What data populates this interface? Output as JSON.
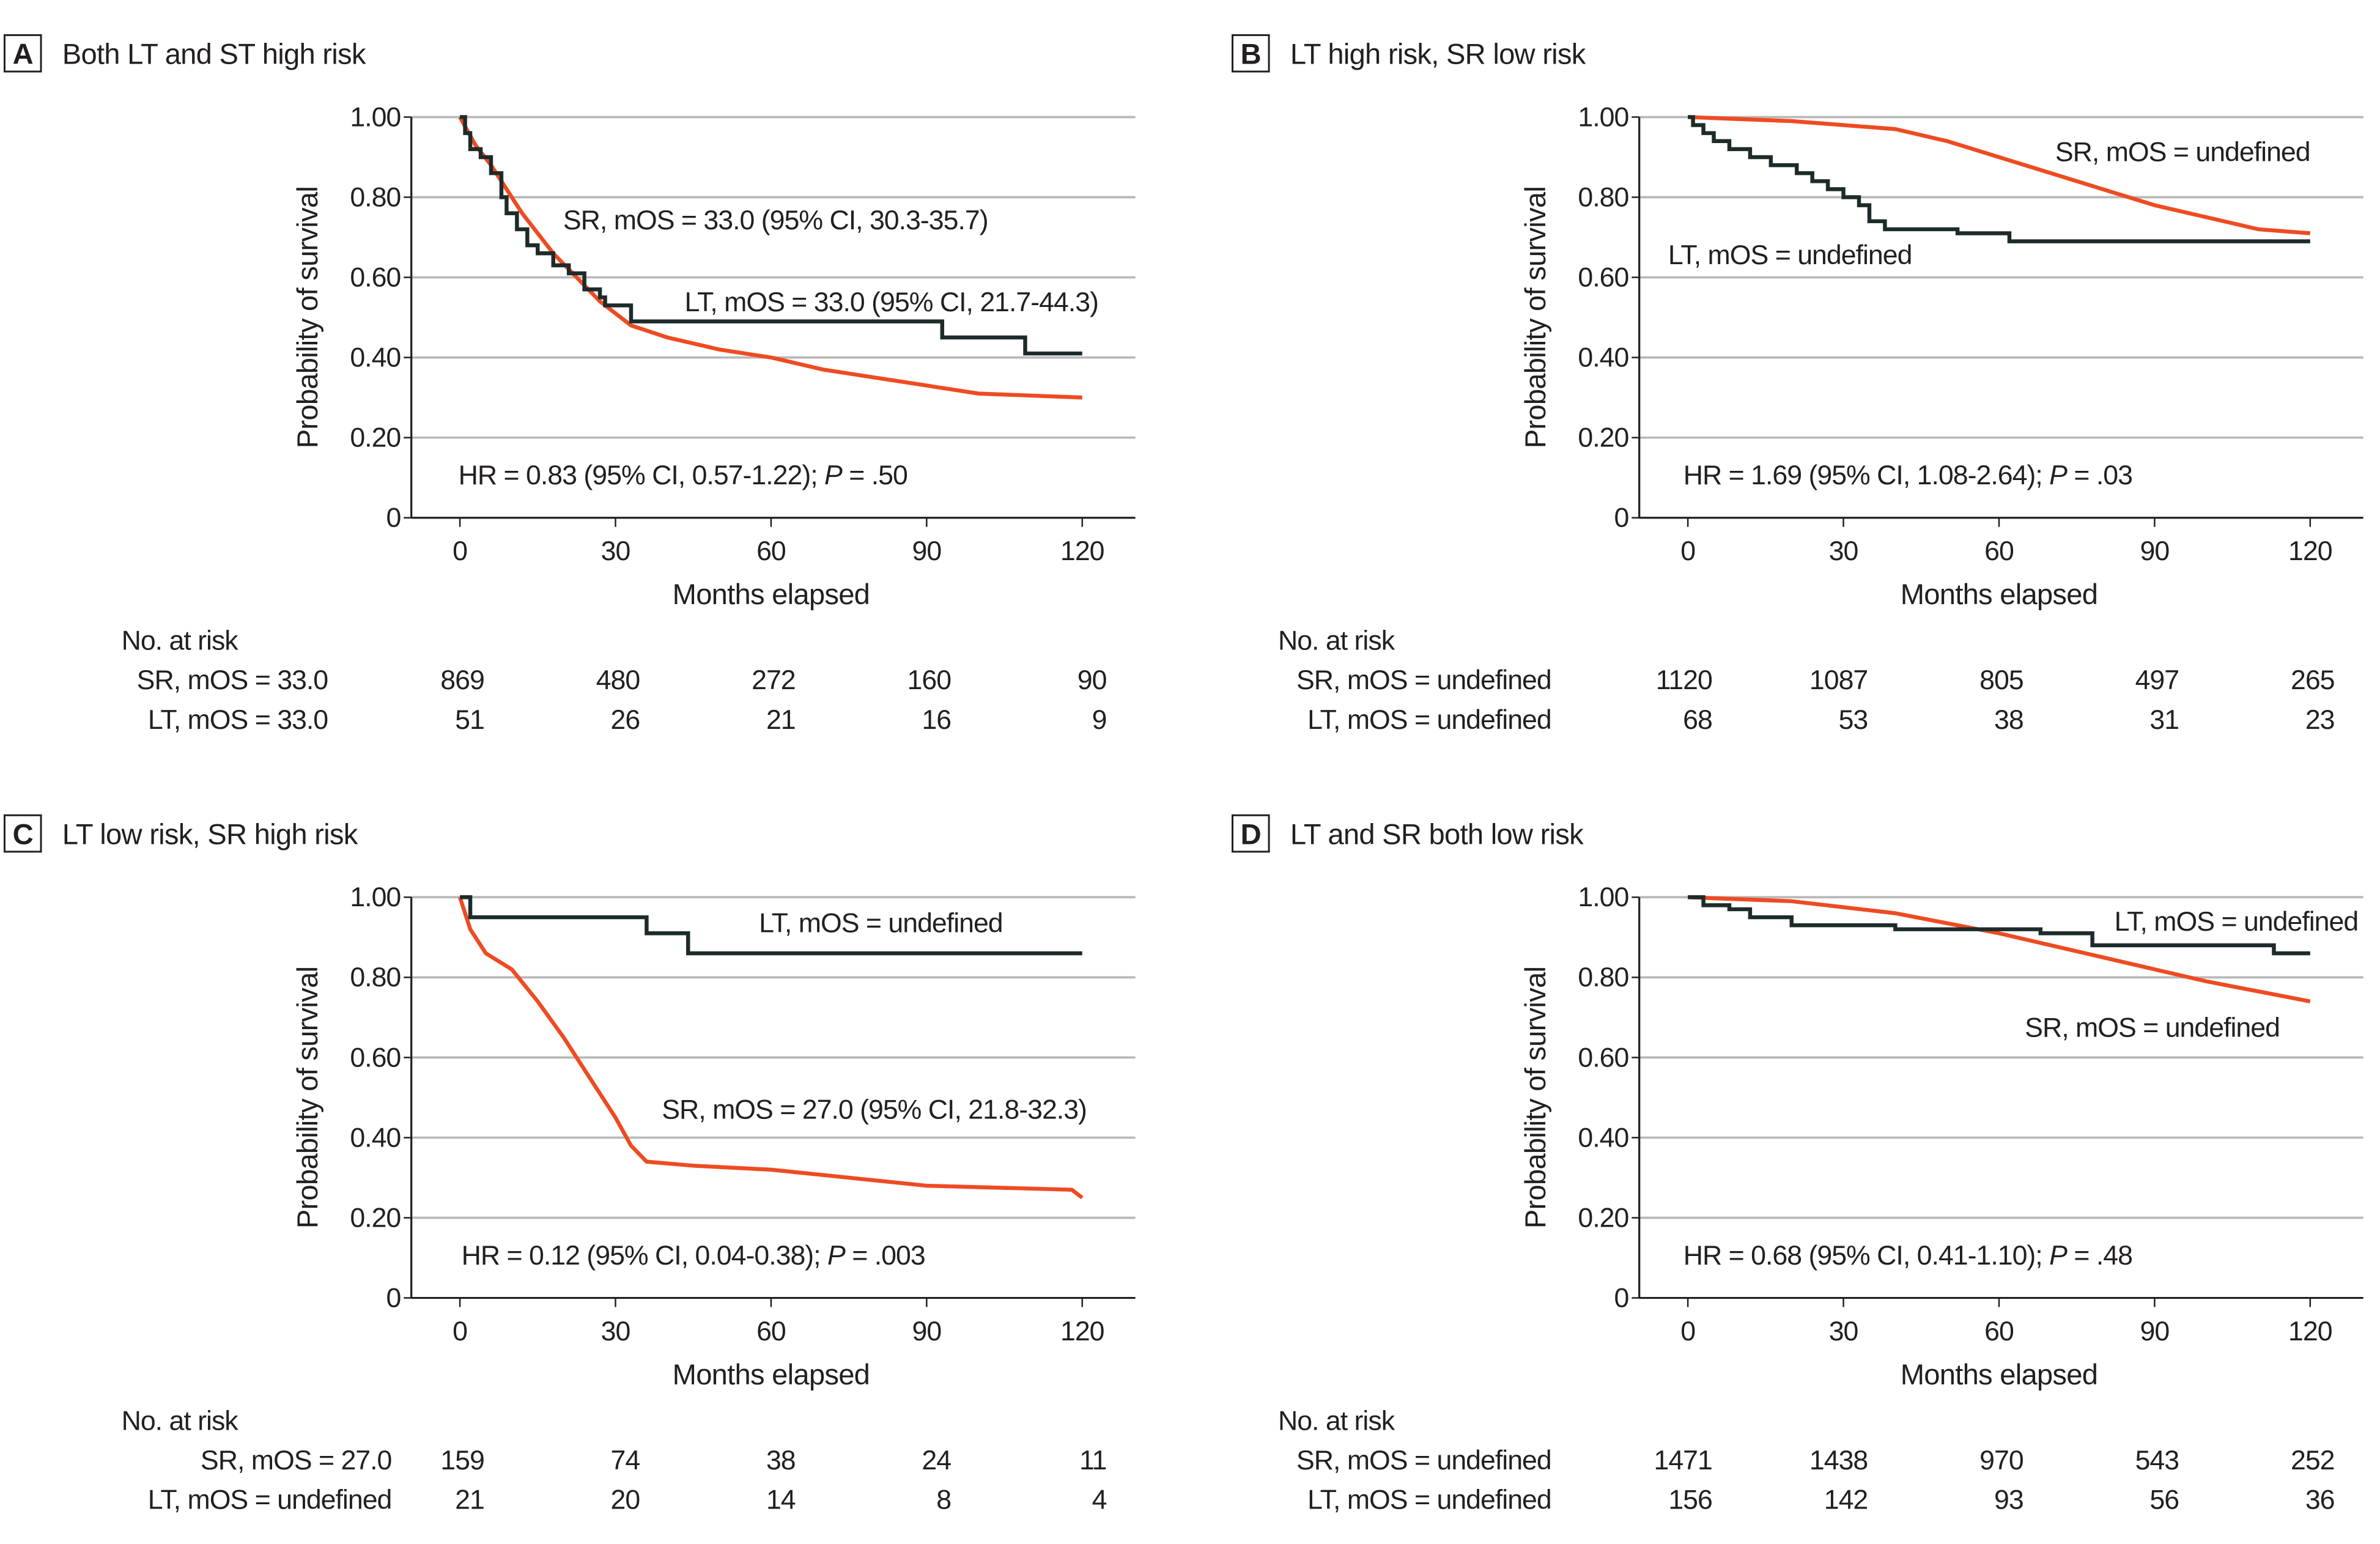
{
  "colors": {
    "sr": "#ee4b22",
    "lt": "#1d2b2b",
    "grid": "#b8b8b8"
  },
  "chart_data": [
    {
      "type": "line",
      "panel": "A",
      "title": "Both LT and ST high risk",
      "xlabel": "Months elapsed",
      "ylabel": "Probability of survival",
      "xlim": [
        0,
        120
      ],
      "ylim": [
        0,
        1
      ],
      "xticks": [
        "0",
        "30",
        "60",
        "90",
        "120"
      ],
      "yticks": [
        "0",
        "0.20",
        "0.40",
        "0.60",
        "0.80",
        "1.00"
      ],
      "annotations": {
        "sr": "SR, mOS = 33.0 (95% CI, 30.3-35.7)",
        "lt": "LT, mOS = 33.0 (95% CI, 21.7-44.3)",
        "hr": "HR = 0.83 (95% CI, 0.57-1.22); ",
        "p_label": "P",
        "p_value": " = .50"
      },
      "series": [
        {
          "name": "SR",
          "step": false,
          "points": [
            [
              0,
              1
            ],
            [
              3,
              0.93
            ],
            [
              6,
              0.88
            ],
            [
              9,
              0.82
            ],
            [
              12,
              0.76
            ],
            [
              15,
              0.71
            ],
            [
              18,
              0.66
            ],
            [
              21,
              0.62
            ],
            [
              24,
              0.58
            ],
            [
              27,
              0.54
            ],
            [
              30,
              0.51
            ],
            [
              33,
              0.48
            ],
            [
              40,
              0.45
            ],
            [
              50,
              0.42
            ],
            [
              60,
              0.4
            ],
            [
              70,
              0.37
            ],
            [
              80,
              0.35
            ],
            [
              90,
              0.33
            ],
            [
              100,
              0.31
            ],
            [
              120,
              0.3
            ]
          ]
        },
        {
          "name": "LT",
          "step": true,
          "points": [
            [
              0,
              1
            ],
            [
              1,
              0.96
            ],
            [
              2,
              0.92
            ],
            [
              4,
              0.9
            ],
            [
              6,
              0.86
            ],
            [
              8,
              0.8
            ],
            [
              9,
              0.76
            ],
            [
              11,
              0.72
            ],
            [
              13,
              0.68
            ],
            [
              15,
              0.66
            ],
            [
              18,
              0.63
            ],
            [
              21,
              0.61
            ],
            [
              24,
              0.57
            ],
            [
              27,
              0.55
            ],
            [
              28,
              0.53
            ],
            [
              33,
              0.49
            ],
            [
              93,
              0.45
            ],
            [
              109,
              0.41
            ],
            [
              120,
              0.41
            ]
          ]
        }
      ],
      "risk_table": {
        "header": "No. at risk",
        "rows": [
          {
            "label": "SR, mOS = 33.0",
            "values": [
              "869",
              "480",
              "272",
              "160",
              "90"
            ]
          },
          {
            "label": "LT, mOS = 33.0",
            "values": [
              "51",
              "26",
              "21",
              "16",
              "9"
            ]
          }
        ]
      }
    },
    {
      "type": "line",
      "panel": "B",
      "title": "LT high risk, SR low risk",
      "xlabel": "Months elapsed",
      "ylabel": "Probability of survival",
      "xlim": [
        0,
        120
      ],
      "ylim": [
        0,
        1
      ],
      "xticks": [
        "0",
        "30",
        "60",
        "90",
        "120"
      ],
      "yticks": [
        "0",
        "0.20",
        "0.40",
        "0.60",
        "0.80",
        "1.00"
      ],
      "annotations": {
        "sr": "SR, mOS = undefined",
        "lt": "LT, mOS = undefined",
        "hr": "HR = 1.69 (95% CI, 1.08-2.64); ",
        "p_label": "P",
        "p_value": " = .03"
      },
      "series": [
        {
          "name": "SR",
          "step": false,
          "points": [
            [
              0,
              1
            ],
            [
              20,
              0.99
            ],
            [
              40,
              0.97
            ],
            [
              50,
              0.94
            ],
            [
              60,
              0.9
            ],
            [
              70,
              0.86
            ],
            [
              80,
              0.82
            ],
            [
              90,
              0.78
            ],
            [
              100,
              0.75
            ],
            [
              110,
              0.72
            ],
            [
              120,
              0.71
            ]
          ]
        },
        {
          "name": "LT",
          "step": true,
          "points": [
            [
              0,
              1
            ],
            [
              1,
              0.98
            ],
            [
              3,
              0.96
            ],
            [
              5,
              0.94
            ],
            [
              8,
              0.92
            ],
            [
              12,
              0.9
            ],
            [
              16,
              0.88
            ],
            [
              21,
              0.86
            ],
            [
              24,
              0.84
            ],
            [
              27,
              0.82
            ],
            [
              30,
              0.8
            ],
            [
              33,
              0.78
            ],
            [
              35,
              0.74
            ],
            [
              38,
              0.72
            ],
            [
              52,
              0.71
            ],
            [
              62,
              0.69
            ],
            [
              120,
              0.69
            ]
          ]
        }
      ],
      "risk_table": {
        "header": "No. at risk",
        "rows": [
          {
            "label": "SR, mOS = undefined",
            "values": [
              "1120",
              "1087",
              "805",
              "497",
              "265"
            ]
          },
          {
            "label": "LT, mOS = undefined",
            "values": [
              "68",
              "53",
              "38",
              "31",
              "23"
            ]
          }
        ]
      }
    },
    {
      "type": "line",
      "panel": "C",
      "title": "LT low risk, SR high risk",
      "xlabel": "Months elapsed",
      "ylabel": "Probability of survival",
      "xlim": [
        0,
        120
      ],
      "ylim": [
        0,
        1
      ],
      "xticks": [
        "0",
        "30",
        "60",
        "90",
        "120"
      ],
      "yticks": [
        "0",
        "0.20",
        "0.40",
        "0.60",
        "0.80",
        "1.00"
      ],
      "annotations": {
        "sr": "SR, mOS = 27.0 (95% CI, 21.8-32.3)",
        "lt": "LT, mOS = undefined",
        "hr": "HR = 0.12 (95% CI, 0.04-0.38); ",
        "p_label": "P",
        "p_value": " = .003"
      },
      "series": [
        {
          "name": "SR",
          "step": false,
          "points": [
            [
              0,
              1
            ],
            [
              2,
              0.92
            ],
            [
              5,
              0.86
            ],
            [
              10,
              0.82
            ],
            [
              15,
              0.74
            ],
            [
              20,
              0.65
            ],
            [
              25,
              0.55
            ],
            [
              30,
              0.45
            ],
            [
              33,
              0.38
            ],
            [
              36,
              0.34
            ],
            [
              45,
              0.33
            ],
            [
              60,
              0.32
            ],
            [
              75,
              0.3
            ],
            [
              90,
              0.28
            ],
            [
              118,
              0.27
            ],
            [
              120,
              0.25
            ]
          ]
        },
        {
          "name": "LT",
          "step": true,
          "points": [
            [
              0,
              1
            ],
            [
              2,
              0.95
            ],
            [
              36,
              0.91
            ],
            [
              44,
              0.86
            ],
            [
              120,
              0.86
            ]
          ]
        }
      ],
      "risk_table": {
        "header": "No. at risk",
        "rows": [
          {
            "label": "SR, mOS = 27.0",
            "values": [
              "159",
              "74",
              "38",
              "24",
              "11"
            ]
          },
          {
            "label": "LT, mOS = undefined",
            "values": [
              "21",
              "20",
              "14",
              "8",
              "4"
            ]
          }
        ]
      }
    },
    {
      "type": "line",
      "panel": "D",
      "title": "LT and SR both low risk",
      "xlabel": "Months elapsed",
      "ylabel": "Probability of survival",
      "xlim": [
        0,
        120
      ],
      "ylim": [
        0,
        1
      ],
      "xticks": [
        "0",
        "30",
        "60",
        "90",
        "120"
      ],
      "yticks": [
        "0",
        "0.20",
        "0.40",
        "0.60",
        "0.80",
        "1.00"
      ],
      "annotations": {
        "sr": "SR, mOS = undefined",
        "lt": "LT, mOS = undefined",
        "hr": "HR = 0.68 (95% CI, 0.41-1.10); ",
        "p_label": "P",
        "p_value": " = .48"
      },
      "series": [
        {
          "name": "SR",
          "step": false,
          "points": [
            [
              0,
              1
            ],
            [
              20,
              0.99
            ],
            [
              40,
              0.96
            ],
            [
              60,
              0.91
            ],
            [
              80,
              0.85
            ],
            [
              100,
              0.79
            ],
            [
              120,
              0.74
            ]
          ]
        },
        {
          "name": "LT",
          "step": true,
          "points": [
            [
              0,
              1
            ],
            [
              3,
              0.98
            ],
            [
              8,
              0.97
            ],
            [
              12,
              0.95
            ],
            [
              20,
              0.93
            ],
            [
              40,
              0.92
            ],
            [
              60,
              0.92
            ],
            [
              68,
              0.91
            ],
            [
              78,
              0.88
            ],
            [
              113,
              0.86
            ],
            [
              120,
              0.86
            ]
          ]
        }
      ],
      "risk_table": {
        "header": "No. at risk",
        "rows": [
          {
            "label": "SR, mOS = undefined",
            "values": [
              "1471",
              "1438",
              "970",
              "543",
              "252"
            ]
          },
          {
            "label": "LT, mOS = undefined",
            "values": [
              "156",
              "142",
              "93",
              "56",
              "36"
            ]
          }
        ]
      }
    }
  ]
}
